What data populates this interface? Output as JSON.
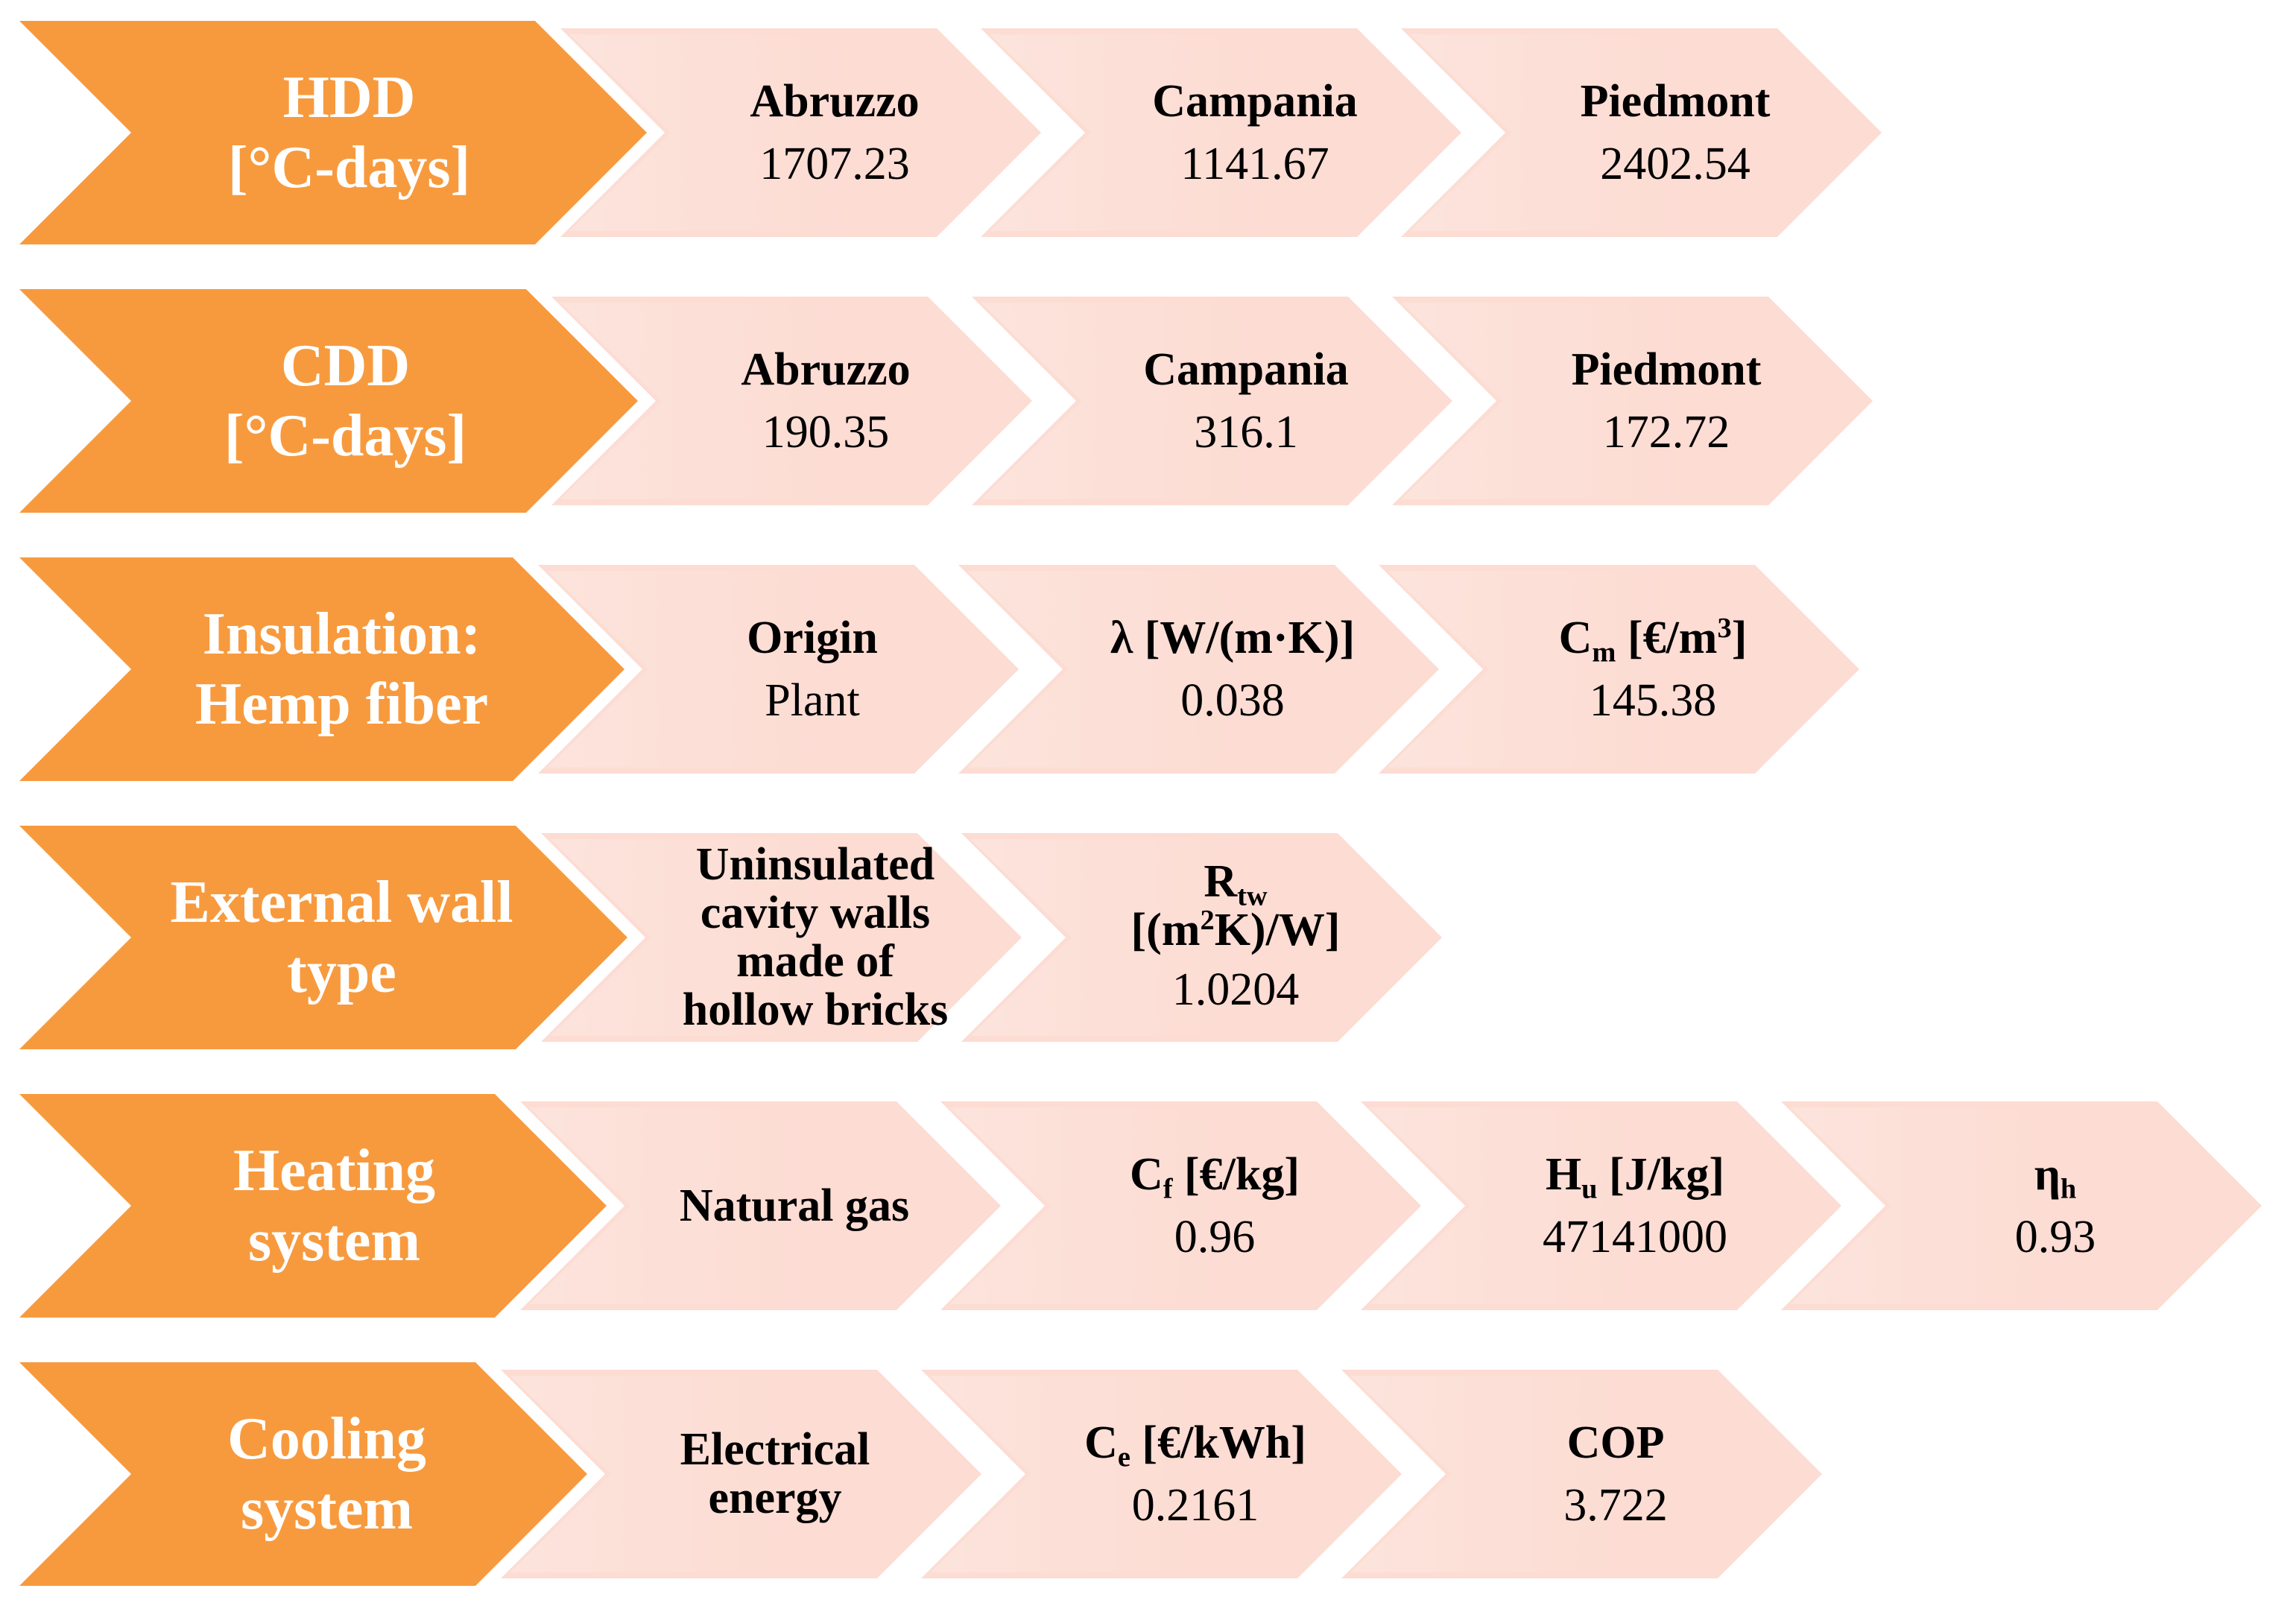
{
  "rows": [
    {
      "main": [
        "HDD",
        "[°C-days]"
      ],
      "cells": [
        {
          "label": "Abruzzo",
          "value": "1707.23"
        },
        {
          "label": "Campania",
          "value": "1141.67"
        },
        {
          "label": "Piedmont",
          "value": "2402.54"
        }
      ]
    },
    {
      "main": [
        "CDD",
        "[°C-days]"
      ],
      "cells": [
        {
          "label": "Abruzzo",
          "value": "190.35"
        },
        {
          "label": "Campania",
          "value": "316.1"
        },
        {
          "label": "Piedmont",
          "value": "172.72"
        }
      ]
    },
    {
      "main": [
        "Insulation:",
        "Hemp fiber"
      ],
      "cells": [
        {
          "label": "Origin",
          "value": "Plant"
        },
        {
          "label": "λ [W/(m·K)]",
          "value": "0.038"
        },
        {
          "label": "C",
          "label_sub": "m",
          "label_rest": " [€/m",
          "label_sup": "3",
          "label_end": "]",
          "value": "145.38"
        }
      ]
    },
    {
      "main": [
        "External wall",
        "type"
      ],
      "cells": [
        {
          "label_lines": [
            "Uninsulated",
            "cavity walls",
            "made of",
            "hollow bricks"
          ]
        },
        {
          "label": "R",
          "label_sub": "tw",
          "label2": "[(m",
          "label2_sup": "2",
          "label2_rest": "K)/W]",
          "value": "1.0204"
        }
      ]
    },
    {
      "main": [
        "Heating",
        "system"
      ],
      "cells": [
        {
          "label": "Natural gas"
        },
        {
          "label": "C",
          "label_sub": "f",
          "label_rest": " [€/kg]",
          "value": "0.96"
        },
        {
          "label": "H",
          "label_sub": "u",
          "label_rest": " [J/kg]",
          "value": "47141000"
        },
        {
          "label": "η",
          "label_sub": "h",
          "value": "0.93"
        }
      ]
    },
    {
      "main": [
        "Cooling",
        "system"
      ],
      "cells": [
        {
          "label_lines": [
            "Electrical",
            "energy"
          ]
        },
        {
          "label": "C",
          "label_sub": "e",
          "label_rest": " [€/kWh]",
          "value": "0.2161"
        },
        {
          "label": "COP",
          "value": "3.722"
        }
      ]
    }
  ],
  "colors": {
    "main_fill": "#f79a3e",
    "main_text": "#ffffff",
    "sub_fill": "#fcdcd3",
    "sub_text": "#000000"
  }
}
